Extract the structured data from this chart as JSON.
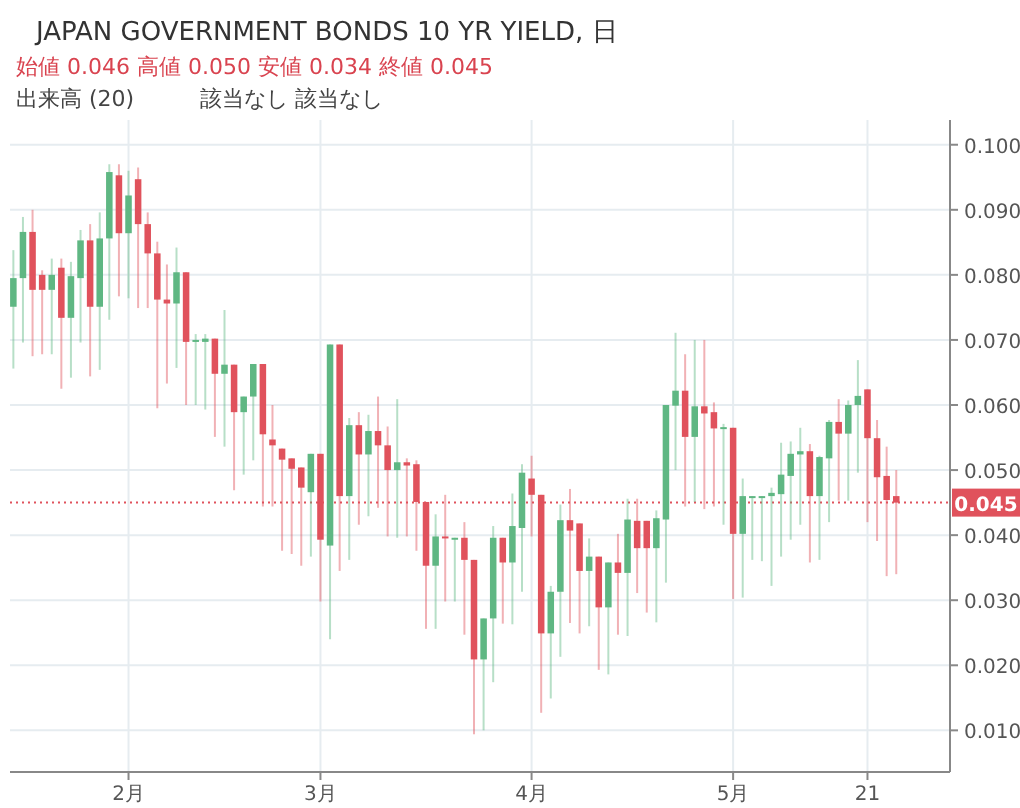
{
  "chart_data": {
    "type": "candlestick",
    "title": "JAPAN GOVERNMENT BONDS 10 YR YIELD, 日",
    "annotations": [
      "始値 0.046  高値 0.050  安値 0.034  終値 0.045",
      "出来高 (20)",
      "該当なし  該当なし"
    ],
    "categories": [
      null,
      null,
      null,
      null,
      null,
      null,
      null,
      null,
      null,
      null,
      null,
      null,
      "2月",
      null,
      null,
      null,
      null,
      null,
      null,
      null,
      null,
      null,
      null,
      null,
      null,
      null,
      null,
      null,
      null,
      null,
      null,
      null,
      "3月",
      null,
      null,
      null,
      null,
      null,
      null,
      null,
      null,
      null,
      null,
      null,
      null,
      null,
      null,
      null,
      null,
      null,
      null,
      null,
      null,
      null,
      "4月",
      null,
      null,
      null,
      null,
      null,
      null,
      null,
      null,
      null,
      null,
      null,
      null,
      null,
      null,
      null,
      null,
      null,
      null,
      null,
      null,
      "5月",
      null,
      null,
      null,
      null,
      null,
      null,
      null,
      null,
      null,
      null,
      null,
      null,
      null,
      "21",
      null,
      null,
      null
    ],
    "ohlc": [
      [
        0.0751,
        0.0838,
        0.0656,
        0.0795
      ],
      [
        0.0795,
        0.0889,
        0.0696,
        0.0866
      ],
      [
        0.0866,
        0.09,
        0.0675,
        0.0777
      ],
      [
        0.08,
        0.0807,
        0.0678,
        0.0777
      ],
      [
        0.0777,
        0.0825,
        0.0678,
        0.08
      ],
      [
        0.0811,
        0.0825,
        0.0625,
        0.0734
      ],
      [
        0.0734,
        0.082,
        0.0642,
        0.0798
      ],
      [
        0.0795,
        0.0869,
        0.0696,
        0.0853
      ],
      [
        0.0853,
        0.0878,
        0.0644,
        0.0751
      ],
      [
        0.0751,
        0.0896,
        0.0654,
        0.0856
      ],
      [
        0.0856,
        0.097,
        0.0731,
        0.0958
      ],
      [
        0.0953,
        0.097,
        0.0767,
        0.0864
      ],
      [
        0.0864,
        0.096,
        0.0764,
        0.0922
      ],
      [
        0.0947,
        0.0965,
        0.0749,
        0.0878
      ],
      [
        0.0878,
        0.0896,
        0.0749,
        0.0833
      ],
      [
        0.0833,
        0.0851,
        0.0595,
        0.0762
      ],
      [
        0.0762,
        0.0816,
        0.0633,
        0.0756
      ],
      [
        0.0756,
        0.0842,
        0.0657,
        0.0804
      ],
      [
        0.0804,
        0.0804,
        0.06,
        0.0697
      ],
      [
        0.0697,
        0.0709,
        0.06,
        0.07
      ],
      [
        0.0697,
        0.0709,
        0.0593,
        0.0702
      ],
      [
        0.0702,
        0.0702,
        0.0551,
        0.0648
      ],
      [
        0.0648,
        0.0746,
        0.0536,
        0.0662
      ],
      [
        0.0662,
        0.0662,
        0.0469,
        0.0589
      ],
      [
        0.0589,
        0.0613,
        0.0493,
        0.0613
      ],
      [
        0.0613,
        0.0663,
        0.0515,
        0.0663
      ],
      [
        0.0663,
        0.0663,
        0.0444,
        0.0555
      ],
      [
        0.0547,
        0.06,
        0.0444,
        0.0538
      ],
      [
        0.0533,
        0.0533,
        0.0376,
        0.0516
      ],
      [
        0.0518,
        0.0518,
        0.0371,
        0.0502
      ],
      [
        0.0504,
        0.0504,
        0.0353,
        0.0473
      ],
      [
        0.0466,
        0.0525,
        0.0367,
        0.0525
      ],
      [
        0.0525,
        0.0525,
        0.0298,
        0.0393
      ],
      [
        0.0384,
        0.0693,
        0.024,
        0.0693
      ],
      [
        0.0693,
        0.0693,
        0.0345,
        0.046
      ],
      [
        0.046,
        0.058,
        0.0362,
        0.0569
      ],
      [
        0.0569,
        0.0589,
        0.0416,
        0.0524
      ],
      [
        0.0524,
        0.0585,
        0.0429,
        0.056
      ],
      [
        0.056,
        0.0613,
        0.0442,
        0.0538
      ],
      [
        0.0538,
        0.0567,
        0.0398,
        0.05
      ],
      [
        0.05,
        0.0609,
        0.0396,
        0.0512
      ],
      [
        0.0512,
        0.0518,
        0.0398,
        0.0507
      ],
      [
        0.0509,
        0.0515,
        0.0376,
        0.0451
      ],
      [
        0.0451,
        0.0451,
        0.0256,
        0.0353
      ],
      [
        0.0353,
        0.0432,
        0.0256,
        0.0398
      ],
      [
        0.0398,
        0.0462,
        0.0298,
        0.0396
      ],
      [
        0.0394,
        0.0396,
        0.0298,
        0.0396
      ],
      [
        0.0396,
        0.042,
        0.0247,
        0.0362
      ],
      [
        0.0362,
        0.0362,
        0.0094,
        0.0209
      ],
      [
        0.0209,
        0.0272,
        0.01,
        0.0272
      ],
      [
        0.0272,
        0.0414,
        0.0174,
        0.0396
      ],
      [
        0.0396,
        0.0396,
        0.0264,
        0.0358
      ],
      [
        0.0358,
        0.0464,
        0.0263,
        0.0414
      ],
      [
        0.0411,
        0.0509,
        0.0313,
        0.0496
      ],
      [
        0.0487,
        0.0522,
        0.0398,
        0.0462
      ],
      [
        0.0462,
        0.0462,
        0.0127,
        0.0249
      ],
      [
        0.0249,
        0.0322,
        0.0149,
        0.0313
      ],
      [
        0.0313,
        0.0447,
        0.0213,
        0.0423
      ],
      [
        0.0423,
        0.0471,
        0.0265,
        0.0407
      ],
      [
        0.0418,
        0.0418,
        0.0249,
        0.0345
      ],
      [
        0.0345,
        0.0395,
        0.026,
        0.0367
      ],
      [
        0.0367,
        0.0367,
        0.0193,
        0.0289
      ],
      [
        0.0289,
        0.0358,
        0.0186,
        0.0358
      ],
      [
        0.0358,
        0.0402,
        0.0247,
        0.0342
      ],
      [
        0.0342,
        0.0456,
        0.0245,
        0.0424
      ],
      [
        0.0422,
        0.0456,
        0.0311,
        0.038
      ],
      [
        0.0422,
        0.0422,
        0.0281,
        0.038
      ],
      [
        0.038,
        0.0438,
        0.0266,
        0.0426
      ],
      [
        0.0424,
        0.06,
        0.0327,
        0.06
      ],
      [
        0.0599,
        0.0711,
        0.05,
        0.0622
      ],
      [
        0.0622,
        0.0678,
        0.0444,
        0.0551
      ],
      [
        0.0551,
        0.07,
        0.0451,
        0.0598
      ],
      [
        0.0598,
        0.07,
        0.044,
        0.0587
      ],
      [
        0.0589,
        0.0604,
        0.0444,
        0.0564
      ],
      [
        0.0564,
        0.0571,
        0.0416,
        0.0566
      ],
      [
        0.0565,
        0.0565,
        0.0302,
        0.0402
      ],
      [
        0.0402,
        0.0487,
        0.0304,
        0.046
      ],
      [
        0.0458,
        0.046,
        0.0362,
        0.046
      ],
      [
        0.0458,
        0.046,
        0.036,
        0.046
      ],
      [
        0.046,
        0.0473,
        0.0322,
        0.0465
      ],
      [
        0.0463,
        0.0542,
        0.0367,
        0.0493
      ],
      [
        0.0491,
        0.0544,
        0.0393,
        0.0525
      ],
      [
        0.0524,
        0.0565,
        0.0416,
        0.0529
      ],
      [
        0.0529,
        0.054,
        0.0358,
        0.046
      ],
      [
        0.046,
        0.0522,
        0.0362,
        0.052
      ],
      [
        0.0518,
        0.0577,
        0.042,
        0.0574
      ],
      [
        0.0574,
        0.0609,
        0.0453,
        0.0556
      ],
      [
        0.0556,
        0.0607,
        0.0453,
        0.06
      ],
      [
        0.06,
        0.0669,
        0.0496,
        0.0614
      ],
      [
        0.0624,
        0.0624,
        0.042,
        0.0549
      ],
      [
        0.0549,
        0.0577,
        0.0391,
        0.0489
      ],
      [
        0.0491,
        0.0536,
        0.0337,
        0.0454
      ],
      [
        0.046,
        0.05,
        0.034,
        0.045
      ]
    ],
    "colors": [
      "#5fb783",
      "#5fb783",
      "#e0525c",
      "#e0525c",
      "#5fb783",
      "#e0525c",
      "#5fb783",
      "#5fb783",
      "#e0525c",
      "#5fb783",
      "#5fb783",
      "#e0525c",
      "#5fb783",
      "#e0525c",
      "#e0525c",
      "#e0525c",
      "#e0525c",
      "#5fb783",
      "#e0525c",
      "#5fb783",
      "#5fb783",
      "#e0525c",
      "#5fb783",
      "#e0525c",
      "#5fb783",
      "#5fb783",
      "#e0525c",
      "#e0525c",
      "#e0525c",
      "#e0525c",
      "#e0525c",
      "#5fb783",
      "#e0525c",
      "#5fb783",
      "#e0525c",
      "#5fb783",
      "#e0525c",
      "#5fb783",
      "#e0525c",
      "#e0525c",
      "#5fb783",
      "#e0525c",
      "#e0525c",
      "#e0525c",
      "#5fb783",
      "#e0525c",
      "#5fb783",
      "#e0525c",
      "#e0525c",
      "#5fb783",
      "#5fb783",
      "#e0525c",
      "#5fb783",
      "#5fb783",
      "#e0525c",
      "#e0525c",
      "#5fb783",
      "#5fb783",
      "#e0525c",
      "#e0525c",
      "#5fb783",
      "#e0525c",
      "#5fb783",
      "#e0525c",
      "#5fb783",
      "#e0525c",
      "#e0525c",
      "#5fb783",
      "#5fb783",
      "#5fb783",
      "#e0525c",
      "#5fb783",
      "#e0525c",
      "#e0525c",
      "#5fb783",
      "#e0525c",
      "#5fb783",
      "#5fb783",
      "#5fb783",
      "#5fb783",
      "#5fb783",
      "#5fb783",
      "#5fb783",
      "#e0525c",
      "#5fb783",
      "#5fb783",
      "#e0525c",
      "#5fb783",
      "#5fb783",
      "#e0525c",
      "#e0525c",
      "#e0525c",
      "#e0525c"
    ],
    "ylim": [
      0.0036,
      0.1038
    ],
    "yticks": [
      {
        "value": 0.01,
        "label": "0.010"
      },
      {
        "value": 0.02,
        "label": "0.020"
      },
      {
        "value": 0.03,
        "label": "0.030"
      },
      {
        "value": 0.04,
        "label": "0.040"
      },
      {
        "value": 0.05,
        "label": "0.050"
      },
      {
        "value": 0.06,
        "label": "0.060"
      },
      {
        "value": 0.07,
        "label": "0.070"
      },
      {
        "value": 0.08,
        "label": "0.080"
      },
      {
        "value": 0.09,
        "label": "0.090"
      },
      {
        "value": 0.1,
        "label": "0.100"
      }
    ],
    "ref_lines": [
      {
        "axis": "y",
        "value": 0.045,
        "label": "0.045",
        "color": "#e0525c",
        "line_style": "dotted"
      }
    ],
    "grid": true
  }
}
